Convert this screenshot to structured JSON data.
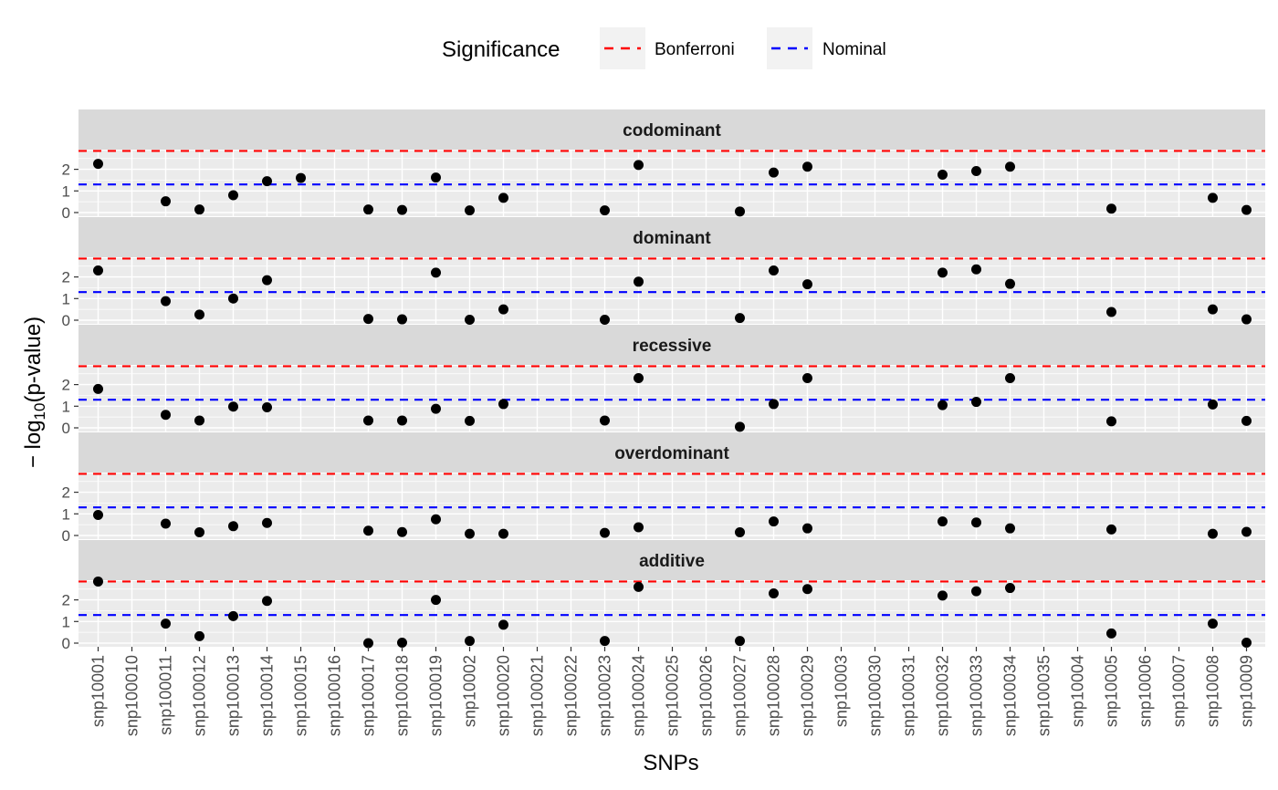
{
  "chart_data": {
    "type": "scatter",
    "xlabel": "SNPs",
    "ylabel_prefix": "− log",
    "ylabel_sub": "10",
    "ylabel_suffix": "(p-value)",
    "ylim": [
      0,
      2.7
    ],
    "y_ticks": [
      0,
      1,
      2
    ],
    "grid": true,
    "legend": {
      "title": "Significance",
      "position": "top",
      "entries": [
        {
          "label": "Bonferroni",
          "color": "#ff0000"
        },
        {
          "label": "Nominal",
          "color": "#0000ff"
        }
      ]
    },
    "thresholds": {
      "Bonferroni": 2.85,
      "Nominal": 1.3
    },
    "categories": [
      "snp10001",
      "snp100010",
      "snp100011",
      "snp100012",
      "snp100013",
      "snp100014",
      "snp100015",
      "snp100016",
      "snp100017",
      "snp100018",
      "snp100019",
      "snp10002",
      "snp100020",
      "snp100021",
      "snp100022",
      "snp100023",
      "snp100024",
      "snp100025",
      "snp100026",
      "snp100027",
      "snp100028",
      "snp100029",
      "snp10003",
      "snp100030",
      "snp100031",
      "snp100032",
      "snp100033",
      "snp100034",
      "snp100035",
      "snp10004",
      "snp10005",
      "snp10006",
      "snp10007",
      "snp10008",
      "snp10009"
    ],
    "panels": [
      {
        "name": "codominant",
        "points": [
          {
            "x": "snp10001",
            "y": 2.25
          },
          {
            "x": "snp100011",
            "y": 0.52
          },
          {
            "x": "snp100012",
            "y": 0.14
          },
          {
            "x": "snp100013",
            "y": 0.8
          },
          {
            "x": "snp100014",
            "y": 1.45
          },
          {
            "x": "snp100015",
            "y": 1.6
          },
          {
            "x": "snp100017",
            "y": 0.14
          },
          {
            "x": "snp100018",
            "y": 0.12
          },
          {
            "x": "snp100019",
            "y": 1.62
          },
          {
            "x": "snp10002",
            "y": 0.1
          },
          {
            "x": "snp100020",
            "y": 0.68
          },
          {
            "x": "snp100023",
            "y": 0.1
          },
          {
            "x": "snp100024",
            "y": 2.2
          },
          {
            "x": "snp100027",
            "y": 0.05
          },
          {
            "x": "snp100028",
            "y": 1.85
          },
          {
            "x": "snp100029",
            "y": 2.12
          },
          {
            "x": "snp100032",
            "y": 1.75
          },
          {
            "x": "snp100033",
            "y": 1.92
          },
          {
            "x": "snp100034",
            "y": 2.12
          },
          {
            "x": "snp10005",
            "y": 0.18
          },
          {
            "x": "snp10008",
            "y": 0.68
          },
          {
            "x": "snp10009",
            "y": 0.12
          }
        ]
      },
      {
        "name": "dominant",
        "points": [
          {
            "x": "snp10001",
            "y": 2.3
          },
          {
            "x": "snp100011",
            "y": 0.88
          },
          {
            "x": "snp100012",
            "y": 0.26
          },
          {
            "x": "snp100013",
            "y": 1.0
          },
          {
            "x": "snp100014",
            "y": 1.85
          },
          {
            "x": "snp100019",
            "y": 2.2
          },
          {
            "x": "snp100017",
            "y": 0.06
          },
          {
            "x": "snp100018",
            "y": 0.04
          },
          {
            "x": "snp10002",
            "y": 0.02
          },
          {
            "x": "snp100020",
            "y": 0.5
          },
          {
            "x": "snp100023",
            "y": 0.02
          },
          {
            "x": "snp100024",
            "y": 1.78
          },
          {
            "x": "snp100027",
            "y": 0.1
          },
          {
            "x": "snp100028",
            "y": 2.3
          },
          {
            "x": "snp100029",
            "y": 1.66
          },
          {
            "x": "snp100032",
            "y": 2.2
          },
          {
            "x": "snp100033",
            "y": 2.35
          },
          {
            "x": "snp100034",
            "y": 1.68
          },
          {
            "x": "snp10005",
            "y": 0.38
          },
          {
            "x": "snp10008",
            "y": 0.5
          },
          {
            "x": "snp10009",
            "y": 0.04
          }
        ]
      },
      {
        "name": "recessive",
        "points": [
          {
            "x": "snp10001",
            "y": 1.8
          },
          {
            "x": "snp100011",
            "y": 0.6
          },
          {
            "x": "snp100012",
            "y": 0.34
          },
          {
            "x": "snp100013",
            "y": 0.98
          },
          {
            "x": "snp100014",
            "y": 0.95
          },
          {
            "x": "snp100017",
            "y": 0.34
          },
          {
            "x": "snp100018",
            "y": 0.34
          },
          {
            "x": "snp100019",
            "y": 0.88
          },
          {
            "x": "snp10002",
            "y": 0.32
          },
          {
            "x": "snp100020",
            "y": 1.1
          },
          {
            "x": "snp100023",
            "y": 0.34
          },
          {
            "x": "snp100024",
            "y": 2.3
          },
          {
            "x": "snp100027",
            "y": 0.05
          },
          {
            "x": "snp100028",
            "y": 1.1
          },
          {
            "x": "snp100029",
            "y": 2.3
          },
          {
            "x": "snp100032",
            "y": 1.05
          },
          {
            "x": "snp100033",
            "y": 1.2
          },
          {
            "x": "snp100034",
            "y": 2.3
          },
          {
            "x": "snp10005",
            "y": 0.3
          },
          {
            "x": "snp10008",
            "y": 1.08
          },
          {
            "x": "snp10009",
            "y": 0.32
          }
        ]
      },
      {
        "name": "overdominant",
        "points": [
          {
            "x": "snp10001",
            "y": 0.95
          },
          {
            "x": "snp100011",
            "y": 0.55
          },
          {
            "x": "snp100012",
            "y": 0.15
          },
          {
            "x": "snp100013",
            "y": 0.43
          },
          {
            "x": "snp100014",
            "y": 0.58
          },
          {
            "x": "snp100017",
            "y": 0.22
          },
          {
            "x": "snp100018",
            "y": 0.16
          },
          {
            "x": "snp100019",
            "y": 0.75
          },
          {
            "x": "snp10002",
            "y": 0.08
          },
          {
            "x": "snp100020",
            "y": 0.08
          },
          {
            "x": "snp100023",
            "y": 0.12
          },
          {
            "x": "snp100024",
            "y": 0.38
          },
          {
            "x": "snp100027",
            "y": 0.15
          },
          {
            "x": "snp100028",
            "y": 0.65
          },
          {
            "x": "snp100029",
            "y": 0.33
          },
          {
            "x": "snp100032",
            "y": 0.65
          },
          {
            "x": "snp100033",
            "y": 0.6
          },
          {
            "x": "snp100034",
            "y": 0.33
          },
          {
            "x": "snp10005",
            "y": 0.28
          },
          {
            "x": "snp10008",
            "y": 0.08
          },
          {
            "x": "snp10009",
            "y": 0.17
          }
        ]
      },
      {
        "name": "additive",
        "points": [
          {
            "x": "snp10001",
            "y": 2.85
          },
          {
            "x": "snp100011",
            "y": 0.9
          },
          {
            "x": "snp100012",
            "y": 0.32
          },
          {
            "x": "snp100013",
            "y": 1.25
          },
          {
            "x": "snp100014",
            "y": 1.95
          },
          {
            "x": "snp100017",
            "y": 0.0
          },
          {
            "x": "snp100018",
            "y": 0.02
          },
          {
            "x": "snp100019",
            "y": 2.0
          },
          {
            "x": "snp10002",
            "y": 0.1
          },
          {
            "x": "snp100020",
            "y": 0.85
          },
          {
            "x": "snp100023",
            "y": 0.1
          },
          {
            "x": "snp100024",
            "y": 2.6
          },
          {
            "x": "snp100027",
            "y": 0.1
          },
          {
            "x": "snp100028",
            "y": 2.3
          },
          {
            "x": "snp100029",
            "y": 2.5
          },
          {
            "x": "snp100032",
            "y": 2.2
          },
          {
            "x": "snp100033",
            "y": 2.4
          },
          {
            "x": "snp100034",
            "y": 2.55
          },
          {
            "x": "snp10005",
            "y": 0.45
          },
          {
            "x": "snp10008",
            "y": 0.9
          },
          {
            "x": "snp10009",
            "y": 0.02
          }
        ]
      }
    ]
  }
}
